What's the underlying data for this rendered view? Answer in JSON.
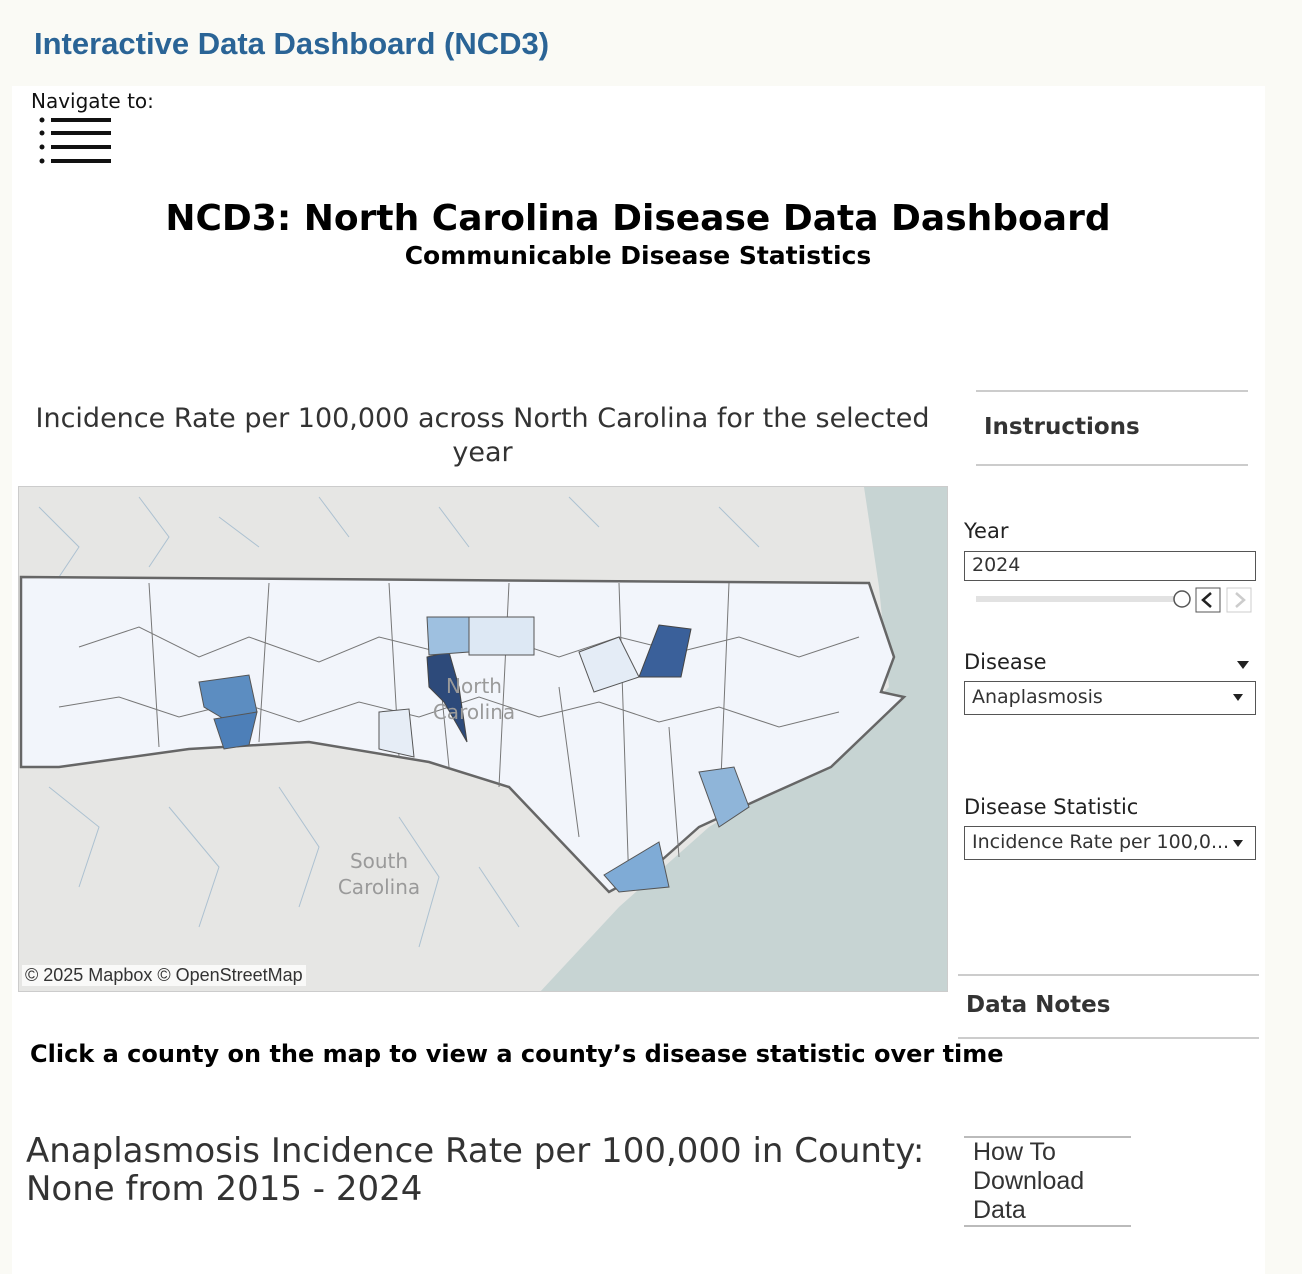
{
  "header": {
    "title": "Interactive Data Dashboard (NCD3)"
  },
  "nav": {
    "label": "Navigate to:"
  },
  "dashboard": {
    "title": "NCD3: North Carolina Disease Data Dashboard",
    "subtitle": "Communicable Disease Statistics"
  },
  "map": {
    "title": "Incidence Rate per 100,000 across North Carolina for the selected year",
    "labels": [
      "North Carolina",
      "South Carolina"
    ],
    "attribution": "© 2025 Mapbox  © OpenStreetMap"
  },
  "instructions": "Instructions",
  "filters": {
    "year": {
      "label": "Year",
      "value": "2024"
    },
    "disease": {
      "label": "Disease",
      "value": "Anaplasmosis"
    },
    "statistic": {
      "label": "Disease Statistic",
      "value": "Incidence Rate per 100,0..."
    }
  },
  "data_notes": "Data Notes",
  "prompt": "Click a county on the map to view a county’s disease statistic over time",
  "county_chart": {
    "title": "Anaplasmosis Incidence Rate per 100,000 in County: None from 2015 - 2024"
  },
  "download": "How To Download Data"
}
